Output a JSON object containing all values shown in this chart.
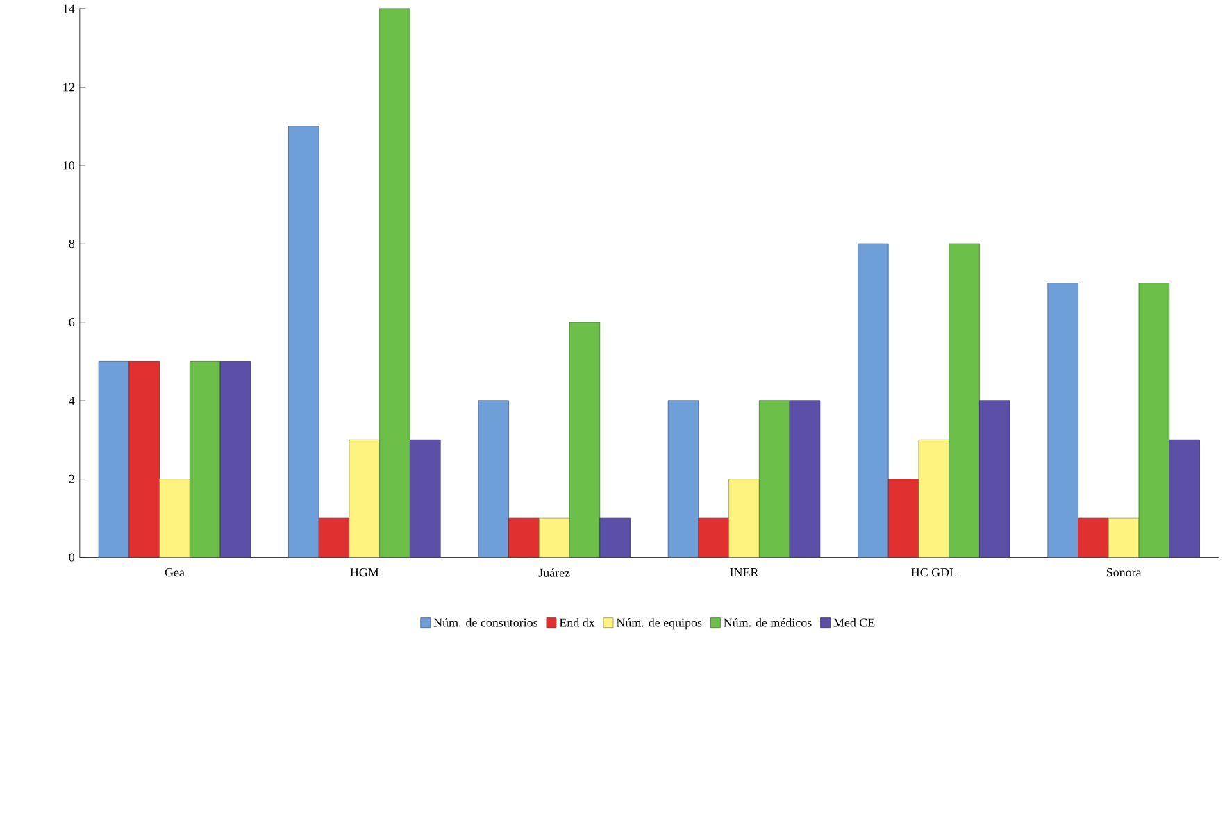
{
  "chart_data": {
    "type": "bar",
    "categories": [
      "Gea",
      "HGM",
      "Juárez",
      "INER",
      "HC GDL",
      "Sonora"
    ],
    "series": [
      {
        "name": "Núm. de consutorios",
        "color": "#6f9fd8",
        "values": [
          5,
          11,
          4,
          4,
          8,
          7
        ]
      },
      {
        "name": "End dx",
        "color": "#e03030",
        "values": [
          5,
          1,
          1,
          1,
          2,
          1
        ]
      },
      {
        "name": "Núm. de equipos",
        "color": "#fff380",
        "values": [
          2,
          3,
          1,
          2,
          3,
          1
        ]
      },
      {
        "name": "Núm. de médicos",
        "color": "#6cc04a",
        "values": [
          5,
          14,
          6,
          4,
          8,
          7
        ]
      },
      {
        "name": "Med CE",
        "color": "#5b4fa8",
        "values": [
          5,
          3,
          1,
          4,
          4,
          3
        ]
      }
    ],
    "ylim": [
      0,
      14
    ],
    "yticks": [
      0,
      2,
      4,
      6,
      8,
      10,
      12,
      14
    ],
    "legend": "bottom"
  }
}
